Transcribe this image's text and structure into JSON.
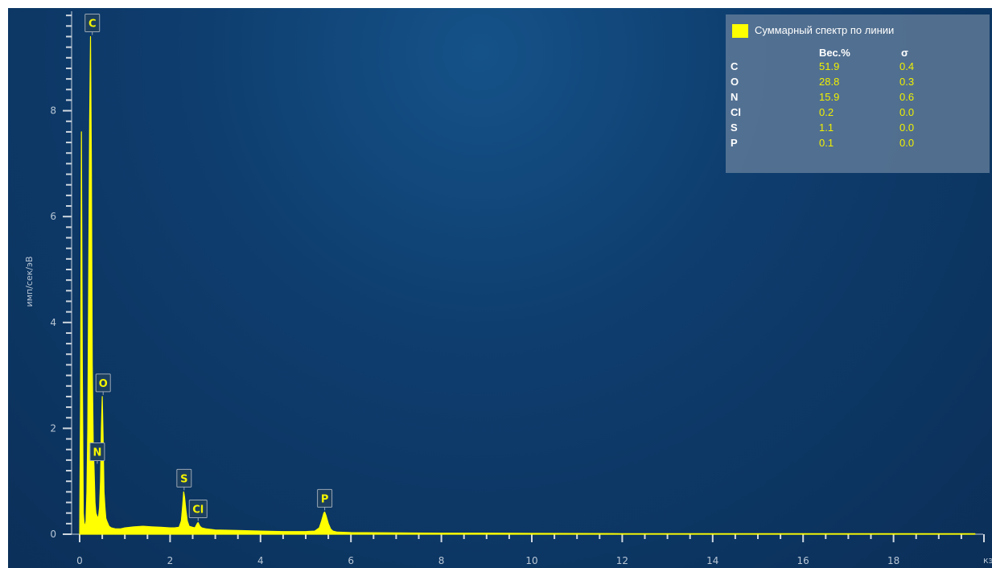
{
  "chart_data": {
    "type": "line",
    "title": "",
    "xlabel": "кэВ",
    "ylabel": "имп/сек/эВ",
    "xlim": [
      0,
      20
    ],
    "ylim": [
      0,
      10
    ],
    "x_ticks": [
      "0",
      "2",
      "4",
      "6",
      "8",
      "10",
      "12",
      "14",
      "16",
      "18"
    ],
    "y_ticks": [
      "0",
      "2",
      "4",
      "6",
      "8"
    ],
    "series": [
      {
        "name": "Суммарный спектр по линии",
        "color": "#ffff00",
        "x": [
          0.0,
          0.02,
          0.04,
          0.06,
          0.08,
          0.1,
          0.12,
          0.14,
          0.16,
          0.18,
          0.2,
          0.22,
          0.24,
          0.26,
          0.28,
          0.3,
          0.32,
          0.34,
          0.36,
          0.38,
          0.4,
          0.42,
          0.44,
          0.46,
          0.48,
          0.5,
          0.52,
          0.54,
          0.56,
          0.58,
          0.6,
          0.65,
          0.7,
          0.8,
          0.9,
          1.0,
          1.2,
          1.4,
          1.6,
          1.8,
          2.0,
          2.1,
          2.2,
          2.25,
          2.28,
          2.3,
          2.32,
          2.35,
          2.38,
          2.42,
          2.5,
          2.55,
          2.6,
          2.62,
          2.66,
          2.7,
          2.8,
          3.0,
          3.5,
          4.0,
          4.5,
          5.0,
          5.2,
          5.3,
          5.35,
          5.4,
          5.42,
          5.45,
          5.5,
          5.55,
          5.6,
          5.7,
          6.0,
          7.0,
          8.0,
          9.0,
          10.0,
          12.0,
          14.0,
          16.0,
          18.0,
          19.8
        ],
        "y": [
          0.0,
          2.5,
          7.6,
          3.0,
          0.4,
          0.2,
          0.15,
          0.25,
          0.8,
          2.0,
          4.8,
          7.8,
          9.4,
          7.0,
          3.2,
          1.7,
          1.2,
          0.6,
          0.4,
          0.35,
          0.3,
          0.35,
          0.5,
          1.0,
          2.0,
          2.6,
          1.8,
          0.8,
          0.5,
          0.3,
          0.25,
          0.15,
          0.12,
          0.1,
          0.1,
          0.12,
          0.14,
          0.15,
          0.14,
          0.13,
          0.12,
          0.12,
          0.13,
          0.25,
          0.55,
          0.8,
          0.7,
          0.45,
          0.25,
          0.15,
          0.13,
          0.12,
          0.2,
          0.22,
          0.15,
          0.12,
          0.1,
          0.08,
          0.07,
          0.06,
          0.05,
          0.05,
          0.06,
          0.12,
          0.25,
          0.4,
          0.42,
          0.35,
          0.2,
          0.1,
          0.06,
          0.04,
          0.03,
          0.025,
          0.02,
          0.02,
          0.015,
          0.01,
          0.01,
          0.01,
          0.01,
          0.01
        ]
      }
    ],
    "peak_labels": [
      {
        "label": "C",
        "x": 0.28,
        "y": 9.4
      },
      {
        "label": "O",
        "x": 0.52,
        "y": 2.6
      },
      {
        "label": "N",
        "x": 0.39,
        "y": 1.3
      },
      {
        "label": "S",
        "x": 2.31,
        "y": 0.8
      },
      {
        "label": "Cl",
        "x": 2.62,
        "y": 0.22
      },
      {
        "label": "P",
        "x": 5.42,
        "y": 0.42
      }
    ]
  },
  "legend": {
    "title": "Суммарный спектр по линии",
    "color": "#ffff00",
    "col1": "Вес.%",
    "col2": "σ",
    "rows": [
      {
        "element": "C",
        "wt": "51.9",
        "sigma": "0.4"
      },
      {
        "element": "O",
        "wt": "28.8",
        "sigma": "0.3"
      },
      {
        "element": "N",
        "wt": "15.9",
        "sigma": "0.6"
      },
      {
        "element": "Cl",
        "wt": "0.2",
        "sigma": "0.0"
      },
      {
        "element": "S",
        "wt": "1.1",
        "sigma": "0.0"
      },
      {
        "element": "P",
        "wt": "0.1",
        "sigma": "0.0"
      }
    ]
  }
}
